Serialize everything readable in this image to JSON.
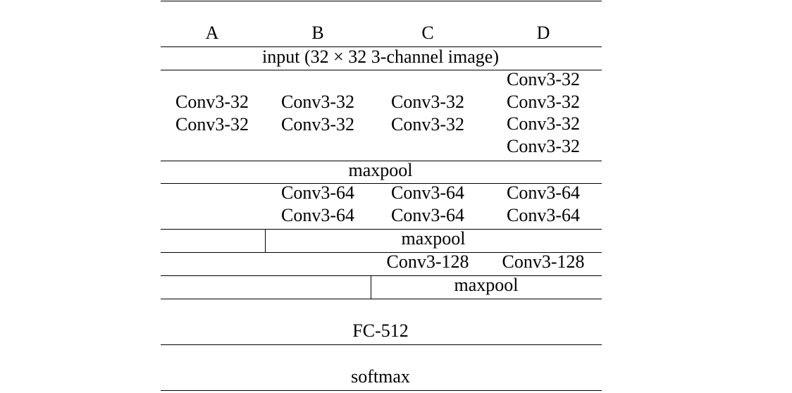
{
  "table": {
    "headers": [
      "A",
      "B",
      "C",
      "D"
    ],
    "input_row": "input (32 × 32 3-channel image)",
    "block1": {
      "A": [
        "Conv3-32",
        "Conv3-32"
      ],
      "B": [
        "Conv3-32",
        "Conv3-32"
      ],
      "C": [
        "Conv3-32",
        "Conv3-32"
      ],
      "D": [
        "Conv3-32",
        "Conv3-32",
        "Conv3-32",
        "Conv3-32"
      ]
    },
    "maxpool1": "maxpool",
    "block2": {
      "B": [
        "Conv3-64",
        "Conv3-64"
      ],
      "C": [
        "Conv3-64",
        "Conv3-64"
      ],
      "D": [
        "Conv3-64",
        "Conv3-64"
      ]
    },
    "maxpool2": "maxpool",
    "block3": {
      "C": "Conv3-128",
      "D": "Conv3-128"
    },
    "maxpool3": "maxpool",
    "fc": "FC-512",
    "softmax": "softmax"
  }
}
